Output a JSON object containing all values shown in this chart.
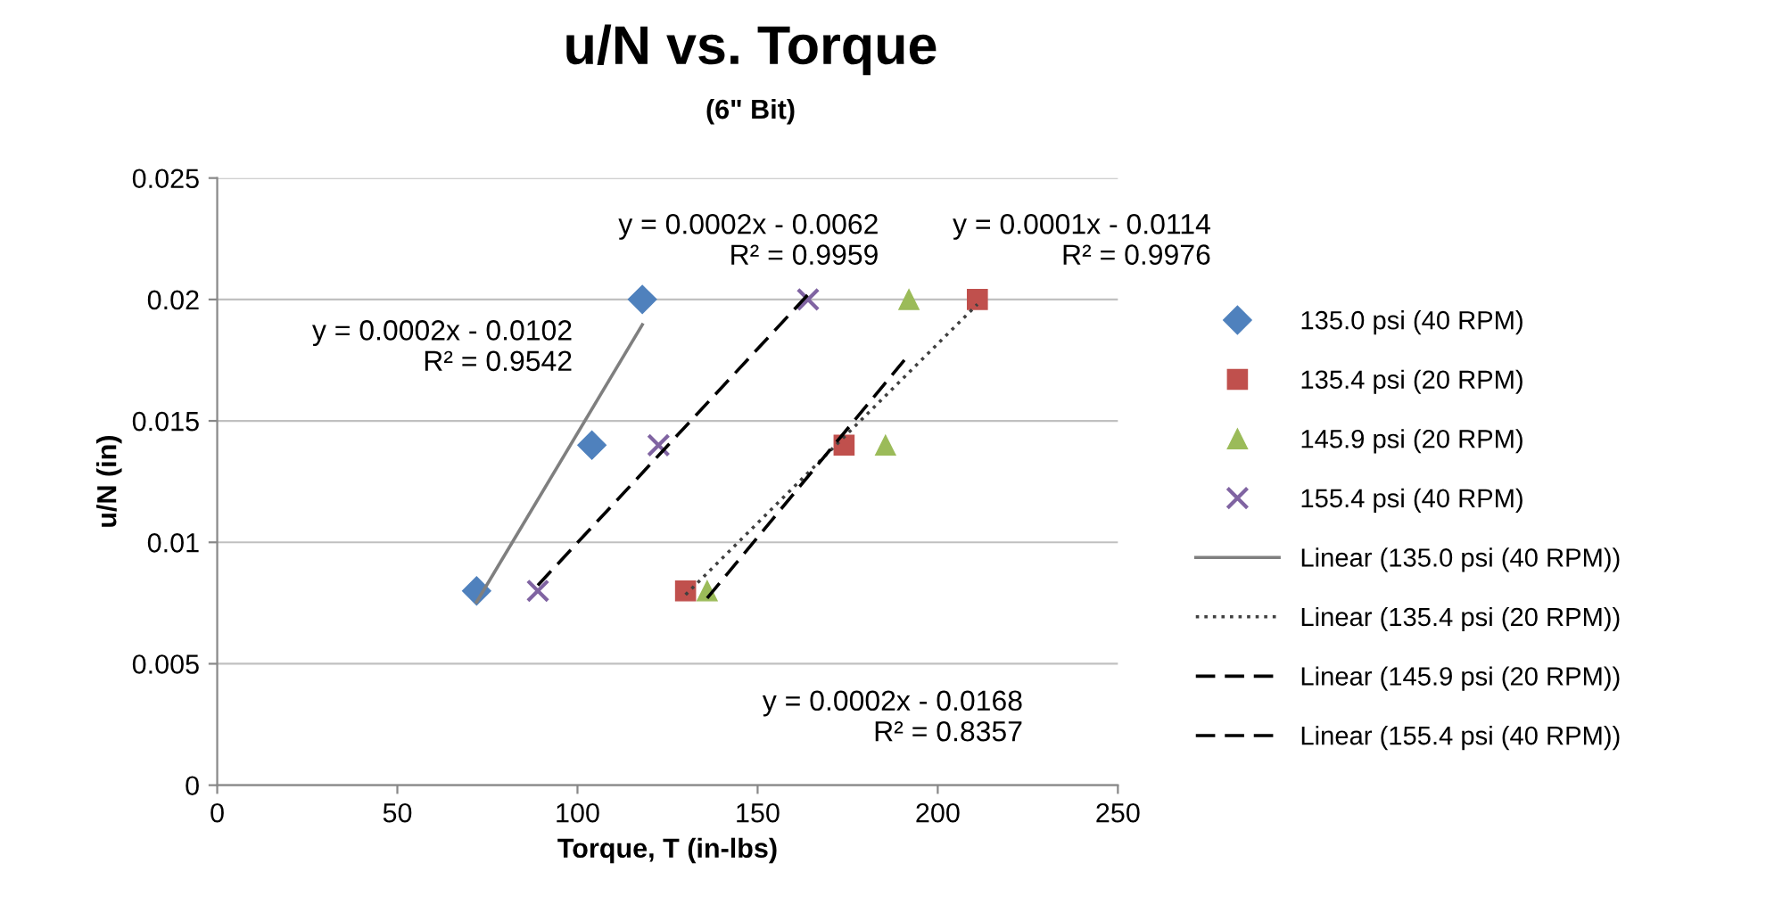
{
  "chart_data": {
    "type": "scatter",
    "title": "u/N vs. Torque",
    "subtitle": "(6\" Bit)",
    "xlabel": "Torque, T (in-lbs)",
    "ylabel": "u/N (in)",
    "xlim": [
      0,
      250
    ],
    "xticks": [
      0,
      50,
      100,
      150,
      200,
      250
    ],
    "ylim": [
      0,
      0.025
    ],
    "yticks": [
      {
        "value": 0,
        "label": "0"
      },
      {
        "value": 0.005,
        "label": "0.005"
      },
      {
        "value": 0.01,
        "label": "0.01"
      },
      {
        "value": 0.015,
        "label": "0.015"
      },
      {
        "value": 0.02,
        "label": "0.02"
      },
      {
        "value": 0.025,
        "label": "0.025"
      }
    ],
    "grid": "y",
    "legend": "right",
    "series": [
      {
        "name": "135.0 psi (40 RPM)",
        "marker": "diamond",
        "color": "#4f81bd",
        "x": [
          72,
          104,
          118
        ],
        "values": [
          0.008,
          0.014,
          0.02
        ]
      },
      {
        "name": "135.4 psi (20 RPM)",
        "marker": "square",
        "color": "#c0504d",
        "x": [
          130,
          174,
          211
        ],
        "values": [
          0.008,
          0.014,
          0.02
        ]
      },
      {
        "name": "145.9 psi (20 RPM)",
        "marker": "triangle",
        "color": "#9bbb59",
        "x": [
          136,
          185.5,
          192
        ],
        "values": [
          0.008,
          0.014,
          0.02
        ]
      },
      {
        "name": "155.4 psi (40 RPM)",
        "marker": "cross",
        "color": "#8064a2",
        "x": [
          89,
          122.5,
          164
        ],
        "values": [
          0.008,
          0.014,
          0.02
        ]
      },
      {
        "name": "Linear (135.0 psi (40 RPM))",
        "type": "line",
        "line_style": "solid",
        "color": "#7f7f7f",
        "x": [
          72,
          118
        ],
        "values": [
          0.00754,
          0.01896
        ]
      },
      {
        "name": "Linear (135.4 psi (20 RPM))",
        "type": "line",
        "line_style": "dotted",
        "color": "#404040",
        "x": [
          130,
          211
        ],
        "values": [
          0.00784,
          0.0198
        ]
      },
      {
        "name": "Linear (145.9 psi (20 RPM))",
        "type": "line",
        "line_style": "dashed",
        "color": "#000000",
        "x": [
          136,
          192
        ],
        "values": [
          0.0077,
          0.01773
        ]
      },
      {
        "name": "Linear (155.4 psi (40 RPM))",
        "type": "line",
        "line_style": "dashed",
        "color": "#000000",
        "x": [
          89,
          164
        ],
        "values": [
          0.00823,
          0.0202
        ]
      }
    ],
    "annotations": [
      "y = 0.0002x - 0.0102\nR² = 0.9542",
      "y = 0.0002x - 0.0062\nR² = 0.9959",
      "y = 0.0001x - 0.0114\nR² = 0.9976",
      "y = 0.0002x - 0.0168\nR² = 0.8357"
    ]
  }
}
